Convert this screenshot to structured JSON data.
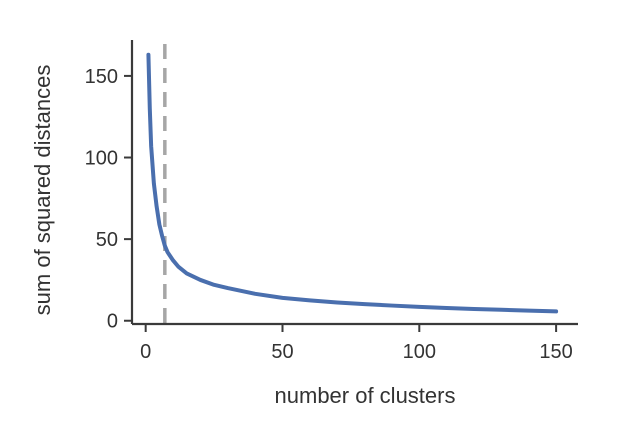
{
  "chart_data": {
    "type": "line",
    "title": "",
    "xlabel": "number of clusters",
    "ylabel": "sum of squared distances",
    "xlim": [
      -5,
      158
    ],
    "ylim": [
      -2,
      172
    ],
    "x_ticks": [
      0,
      50,
      100,
      150
    ],
    "y_ticks": [
      0,
      50,
      100,
      150
    ],
    "grid": false,
    "legend": "none",
    "series": [
      {
        "color": "#4a6fae",
        "x": [
          1,
          1.5,
          2,
          3,
          4,
          5,
          6,
          7,
          8,
          10,
          12,
          15,
          20,
          25,
          30,
          40,
          50,
          60,
          70,
          80,
          90,
          100,
          110,
          120,
          130,
          140,
          150
        ],
        "y": [
          163,
          130,
          107,
          84,
          70,
          59,
          52,
          46,
          42,
          37,
          33,
          29,
          25,
          22,
          20,
          16.5,
          14,
          12.5,
          11.2,
          10.2,
          9.3,
          8.5,
          7.8,
          7.2,
          6.7,
          6.2,
          5.7
        ]
      }
    ],
    "reference_lines": [
      {
        "orientation": "vertical",
        "x": 7,
        "style": "dashed",
        "color": "#a6a6a6"
      }
    ]
  }
}
